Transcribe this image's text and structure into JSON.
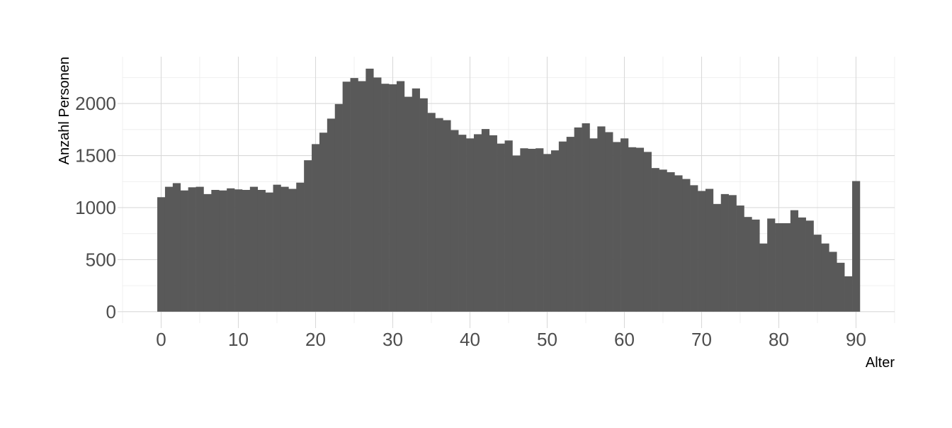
{
  "chart_data": {
    "type": "bar",
    "title": "",
    "xlabel": "Alter",
    "ylabel": "Anzahl Personen",
    "x": [
      0,
      1,
      2,
      3,
      4,
      5,
      6,
      7,
      8,
      9,
      10,
      11,
      12,
      13,
      14,
      15,
      16,
      17,
      18,
      19,
      20,
      21,
      22,
      23,
      24,
      25,
      26,
      27,
      28,
      29,
      30,
      31,
      32,
      33,
      34,
      35,
      36,
      37,
      38,
      39,
      40,
      41,
      42,
      43,
      44,
      45,
      46,
      47,
      48,
      49,
      50,
      51,
      52,
      53,
      54,
      55,
      56,
      57,
      58,
      59,
      60,
      61,
      62,
      63,
      64,
      65,
      66,
      67,
      68,
      69,
      70,
      71,
      72,
      73,
      74,
      75,
      76,
      77,
      78,
      79,
      80,
      81,
      82,
      83,
      84,
      85,
      86,
      87,
      88,
      89,
      90
    ],
    "values": [
      1100,
      1200,
      1235,
      1165,
      1195,
      1200,
      1130,
      1170,
      1165,
      1185,
      1175,
      1170,
      1200,
      1170,
      1145,
      1220,
      1200,
      1180,
      1240,
      1455,
      1610,
      1720,
      1855,
      1995,
      2210,
      2245,
      2215,
      2335,
      2250,
      2190,
      2185,
      2215,
      2065,
      2145,
      2050,
      1910,
      1860,
      1840,
      1745,
      1700,
      1665,
      1705,
      1755,
      1695,
      1615,
      1645,
      1500,
      1570,
      1565,
      1570,
      1515,
      1550,
      1635,
      1680,
      1770,
      1810,
      1665,
      1780,
      1725,
      1630,
      1665,
      1580,
      1575,
      1535,
      1380,
      1365,
      1340,
      1310,
      1275,
      1215,
      1160,
      1180,
      1035,
      1130,
      1120,
      1020,
      910,
      885,
      655,
      895,
      850,
      850,
      975,
      905,
      875,
      740,
      655,
      575,
      470,
      340,
      1255
    ],
    "xlim": [
      -5,
      95
    ],
    "ylim": [
      -110,
      2450
    ],
    "x_ticks": [
      0,
      10,
      20,
      30,
      40,
      50,
      60,
      70,
      80,
      90
    ],
    "y_ticks": [
      0,
      500,
      1000,
      1500,
      2000
    ],
    "x_tick_labels": [
      "0",
      "10",
      "20",
      "30",
      "40",
      "50",
      "60",
      "70",
      "80",
      "90"
    ],
    "y_tick_labels": [
      "0",
      "500",
      "1000",
      "1500",
      "2000"
    ],
    "grid": true,
    "bar_color": "#595959",
    "grid_color": "#d9d9d9",
    "legend": "none"
  }
}
